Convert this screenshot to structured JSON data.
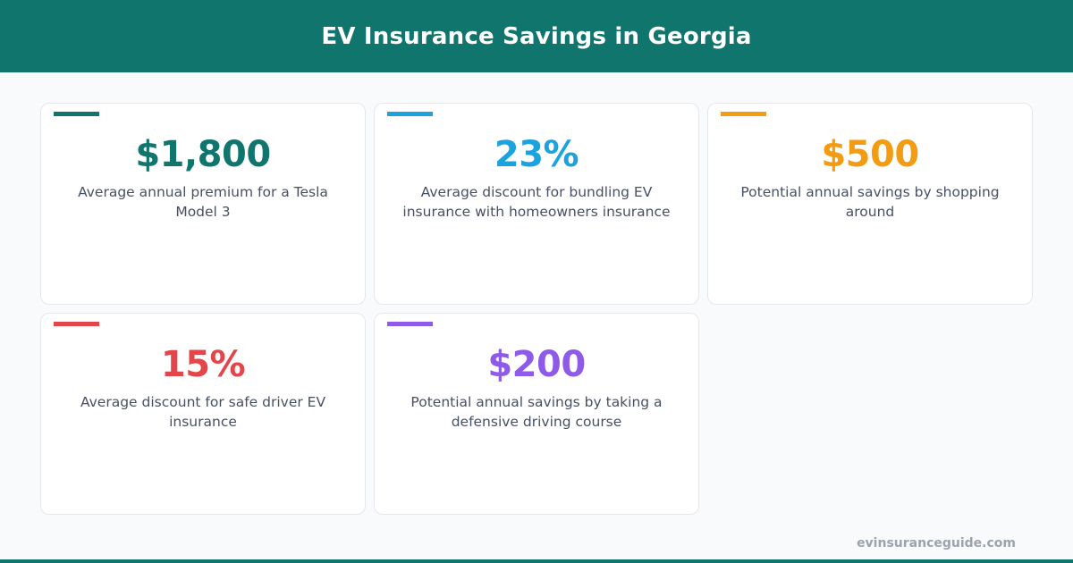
{
  "header": {
    "title": "EV Insurance Savings in Georgia"
  },
  "colors": {
    "brand": "#10766d",
    "background": "#f8fafc",
    "text": "#475063",
    "footer": "#9ca3af"
  },
  "cards": [
    {
      "value": "$1,800",
      "description": "Average annual premium for a Tesla Model 3",
      "accent": "#10766d"
    },
    {
      "value": "23%",
      "description": "Average discount for bundling EV insurance with homeowners insurance",
      "accent": "#1ba3e0"
    },
    {
      "value": "$500",
      "description": "Potential annual savings by shopping around",
      "accent": "#f39c12"
    },
    {
      "value": "15%",
      "description": "Average discount for safe driver EV insurance",
      "accent": "#e2454a"
    },
    {
      "value": "$200",
      "description": "Potential annual savings by taking a defensive driving course",
      "accent": "#8e5be8"
    }
  ],
  "footer": {
    "site": "evinsuranceguide.com"
  }
}
